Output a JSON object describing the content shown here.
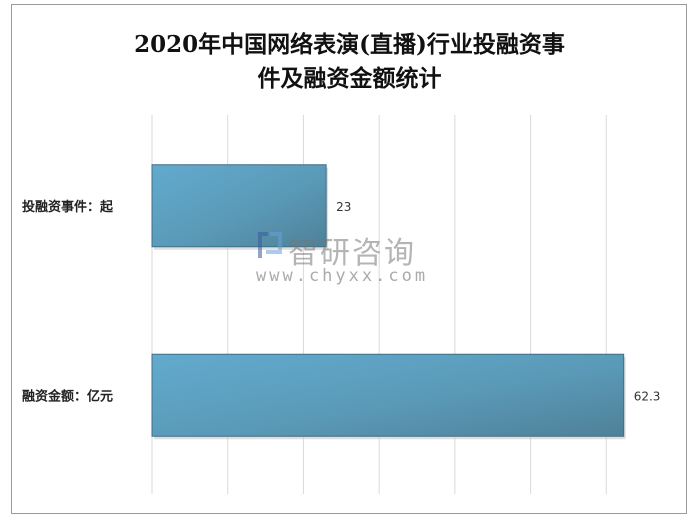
{
  "chart_data": {
    "type": "bar",
    "orientation": "horizontal",
    "title": "2020年中国网络表演(直播)行业投融资事件及融资金额统计",
    "title_lines": [
      "2020年中国网络表演(直播)行业投融资事",
      "件及融资金额统计"
    ],
    "categories": [
      "投融资事件：起",
      "融资金额：亿元"
    ],
    "values": [
      23,
      62.3
    ],
    "data_labels": [
      "23",
      "62.3"
    ],
    "xlim": [
      0,
      70
    ],
    "grid": true,
    "x_tick_labels_shown": false,
    "legend": "none",
    "bar_color": "#5fa5c8"
  },
  "watermark": {
    "name": "智研咨询",
    "url": "www.chyxx.com"
  }
}
